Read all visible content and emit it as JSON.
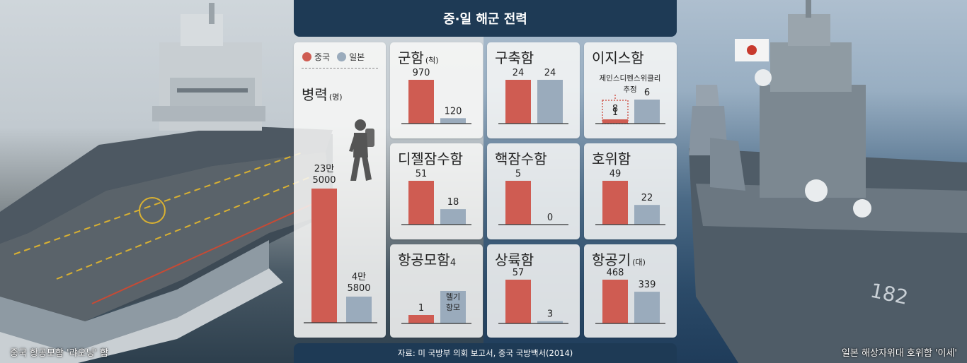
{
  "title": "중·일 해군 전력",
  "source": "자료: 미 국방부 의회 보고서, 중국 국방백서(2014)",
  "captions": {
    "left": "중국 항공모함 '랴오닝' 함",
    "right": "일본 해상자위대 호위함 '이세'"
  },
  "colors": {
    "china": "#cf5c52",
    "japan": "#9aabbc",
    "header": "#1e3a55",
    "card": "#f8f8f7"
  },
  "legend": [
    {
      "name": "중국",
      "color": "#cf5c52"
    },
    {
      "name": "일본",
      "color": "#9aabbc"
    }
  ],
  "personnel": {
    "title": "병력",
    "unit": "(명)",
    "china_label": [
      "23만",
      "5000"
    ],
    "japan_label": [
      "4만",
      "5800"
    ]
  },
  "chart_data": [
    {
      "type": "bar",
      "title": "병력",
      "unit": "(명)",
      "categories": [
        "중국",
        "일본"
      ],
      "values": [
        235000,
        45800
      ]
    },
    {
      "type": "bar",
      "title": "군함",
      "unit": "(척)",
      "categories": [
        "중국",
        "일본"
      ],
      "values": [
        970,
        120
      ]
    },
    {
      "type": "bar",
      "title": "구축함",
      "unit": "",
      "categories": [
        "중국",
        "일본"
      ],
      "values": [
        24,
        24
      ]
    },
    {
      "type": "bar",
      "title": "이지스함",
      "unit": "",
      "categories": [
        "중국",
        "일본"
      ],
      "values": [
        1,
        6
      ],
      "annotation": {
        "text": [
          "제인스디펜스위클리",
          "추정"
        ],
        "value": 8,
        "series": "중국"
      }
    },
    {
      "type": "bar",
      "title": "디젤잠수함",
      "unit": "",
      "categories": [
        "중국",
        "일본"
      ],
      "values": [
        51,
        18
      ]
    },
    {
      "type": "bar",
      "title": "핵잠수함",
      "unit": "",
      "categories": [
        "중국",
        "일본"
      ],
      "values": [
        5,
        0
      ]
    },
    {
      "type": "bar",
      "title": "호위함",
      "unit": "",
      "categories": [
        "중국",
        "일본"
      ],
      "values": [
        49,
        22
      ]
    },
    {
      "type": "bar",
      "title": "항공모함",
      "unit": "",
      "categories": [
        "중국",
        "일본"
      ],
      "values": [
        1,
        4
      ],
      "annotation": {
        "text": [
          "헬기",
          "항모"
        ],
        "series": "일본"
      }
    },
    {
      "type": "bar",
      "title": "상륙함",
      "unit": "",
      "categories": [
        "중국",
        "일본"
      ],
      "values": [
        57,
        3
      ]
    },
    {
      "type": "bar",
      "title": "항공기",
      "unit": "(대)",
      "categories": [
        "중국",
        "일본"
      ],
      "values": [
        468,
        339
      ]
    }
  ]
}
